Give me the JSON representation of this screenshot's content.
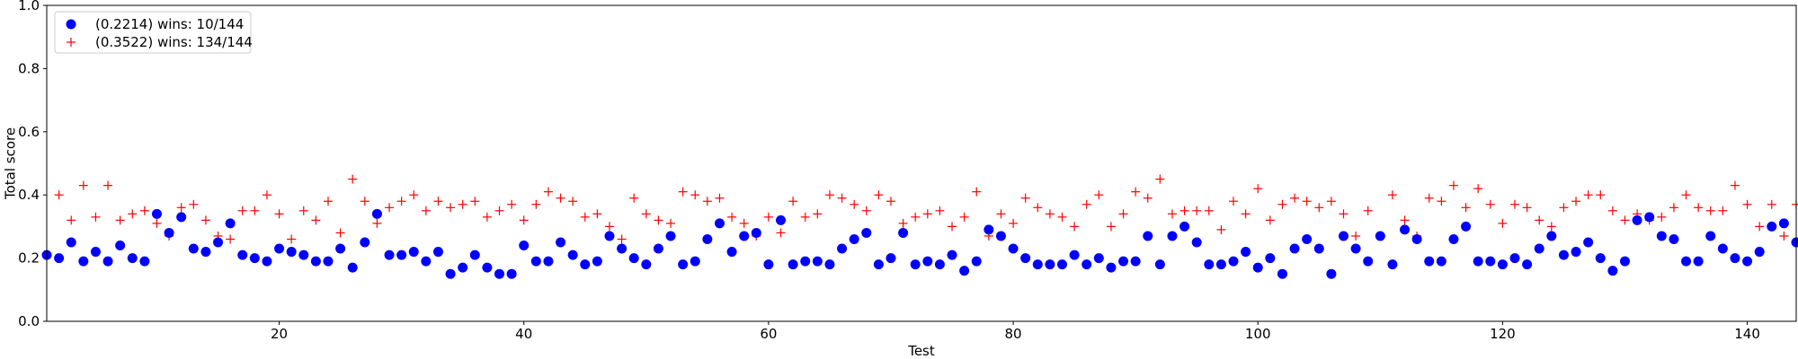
{
  "chart_data": {
    "type": "scatter",
    "title": "",
    "xlabel": "Test",
    "ylabel": "Total score",
    "xlim": [
      1,
      144
    ],
    "ylim": [
      0.0,
      1.0
    ],
    "xticks": [
      20,
      40,
      60,
      80,
      100,
      120,
      140
    ],
    "yticks": [
      0.0,
      0.2,
      0.4,
      0.6,
      0.8,
      1.0
    ],
    "xtick_labels": [
      "20",
      "40",
      "60",
      "80",
      "100",
      "120",
      "140"
    ],
    "ytick_labels": [
      "0.0",
      "0.2",
      "0.4",
      "0.6",
      "0.8",
      "1.0"
    ],
    "grid": false,
    "legend_position": "upper-left",
    "x": [
      1,
      2,
      3,
      4,
      5,
      6,
      7,
      8,
      9,
      10,
      11,
      12,
      13,
      14,
      15,
      16,
      17,
      18,
      19,
      20,
      21,
      22,
      23,
      24,
      25,
      26,
      27,
      28,
      29,
      30,
      31,
      32,
      33,
      34,
      35,
      36,
      37,
      38,
      39,
      40,
      41,
      42,
      43,
      44,
      45,
      46,
      47,
      48,
      49,
      50,
      51,
      52,
      53,
      54,
      55,
      56,
      57,
      58,
      59,
      60,
      61,
      62,
      63,
      64,
      65,
      66,
      67,
      68,
      69,
      70,
      71,
      72,
      73,
      74,
      75,
      76,
      77,
      78,
      79,
      80,
      81,
      82,
      83,
      84,
      85,
      86,
      87,
      88,
      89,
      90,
      91,
      92,
      93,
      94,
      95,
      96,
      97,
      98,
      99,
      100,
      101,
      102,
      103,
      104,
      105,
      106,
      107,
      108,
      109,
      110,
      111,
      112,
      113,
      114,
      115,
      116,
      117,
      118,
      119,
      120,
      121,
      122,
      123,
      124,
      125,
      126,
      127,
      128,
      129,
      130,
      131,
      132,
      133,
      134,
      135,
      136,
      137,
      138,
      139,
      140,
      141,
      142,
      143,
      144
    ],
    "series": [
      {
        "name": "(0.2214) wins: 10/144",
        "color": "#0000ff",
        "marker": "circle",
        "values": [
          0.21,
          0.2,
          0.25,
          0.19,
          0.22,
          0.19,
          0.24,
          0.2,
          0.19,
          0.34,
          0.28,
          0.33,
          0.23,
          0.22,
          0.25,
          0.31,
          0.21,
          0.2,
          0.19,
          0.23,
          0.22,
          0.21,
          0.19,
          0.19,
          0.23,
          0.17,
          0.25,
          0.34,
          0.21,
          0.21,
          0.22,
          0.19,
          0.22,
          0.15,
          0.17,
          0.21,
          0.17,
          0.15,
          0.15,
          0.24,
          0.19,
          0.19,
          0.25,
          0.21,
          0.18,
          0.19,
          0.27,
          0.23,
          0.2,
          0.18,
          0.23,
          0.27,
          0.18,
          0.19,
          0.26,
          0.31,
          0.22,
          0.27,
          0.28,
          0.18,
          0.32,
          0.18,
          0.19,
          0.19,
          0.18,
          0.23,
          0.26,
          0.28,
          0.18,
          0.2,
          0.28,
          0.18,
          0.19,
          0.18,
          0.21,
          0.16,
          0.19,
          0.29,
          0.27,
          0.23,
          0.2,
          0.18,
          0.18,
          0.18,
          0.21,
          0.18,
          0.2,
          0.17,
          0.19,
          0.19,
          0.27,
          0.18,
          0.27,
          0.3,
          0.25,
          0.18,
          0.18,
          0.19,
          0.22,
          0.17,
          0.2,
          0.15,
          0.23,
          0.26,
          0.23,
          0.15,
          0.27,
          0.23,
          0.19,
          0.27,
          0.18,
          0.29,
          0.26,
          0.19,
          0.19,
          0.26,
          0.3,
          0.19,
          0.19,
          0.18,
          0.2,
          0.18,
          0.23,
          0.27,
          0.21,
          0.22,
          0.25,
          0.2,
          0.16,
          0.19,
          0.32,
          0.33,
          0.27,
          0.26,
          0.19,
          0.19,
          0.27,
          0.23,
          0.2,
          0.19,
          0.22,
          0.3,
          0.31,
          0.25
        ]
      },
      {
        "name": "(0.3522) wins: 134/144",
        "color": "#ff0000",
        "marker": "plus",
        "values": [
          0.21,
          0.4,
          0.32,
          0.43,
          0.33,
          0.43,
          0.32,
          0.34,
          0.35,
          0.31,
          0.27,
          0.36,
          0.37,
          0.32,
          0.27,
          0.26,
          0.35,
          0.35,
          0.4,
          0.34,
          0.26,
          0.35,
          0.32,
          0.38,
          0.28,
          0.45,
          0.38,
          0.31,
          0.36,
          0.38,
          0.4,
          0.35,
          0.38,
          0.36,
          0.37,
          0.38,
          0.33,
          0.35,
          0.37,
          0.32,
          0.37,
          0.41,
          0.39,
          0.38,
          0.33,
          0.34,
          0.3,
          0.26,
          0.39,
          0.34,
          0.32,
          0.31,
          0.41,
          0.4,
          0.38,
          0.39,
          0.33,
          0.31,
          0.27,
          0.33,
          0.28,
          0.38,
          0.33,
          0.34,
          0.4,
          0.39,
          0.37,
          0.35,
          0.4,
          0.38,
          0.31,
          0.33,
          0.34,
          0.35,
          0.3,
          0.33,
          0.41,
          0.27,
          0.34,
          0.31,
          0.39,
          0.36,
          0.34,
          0.33,
          0.3,
          0.37,
          0.4,
          0.3,
          0.34,
          0.41,
          0.39,
          0.45,
          0.34,
          0.35,
          0.35,
          0.35,
          0.29,
          0.38,
          0.34,
          0.42,
          0.32,
          0.37,
          0.39,
          0.38,
          0.36,
          0.38,
          0.34,
          0.27,
          0.35,
          0.27,
          0.4,
          0.32,
          0.27,
          0.39,
          0.38,
          0.43,
          0.36,
          0.42,
          0.37,
          0.31,
          0.37,
          0.36,
          0.32,
          0.3,
          0.36,
          0.38,
          0.4,
          0.4,
          0.35,
          0.32,
          0.34,
          0.32,
          0.33,
          0.36,
          0.4,
          0.36,
          0.35,
          0.35,
          0.43,
          0.37,
          0.3,
          0.37,
          0.27,
          0.37
        ]
      }
    ]
  }
}
